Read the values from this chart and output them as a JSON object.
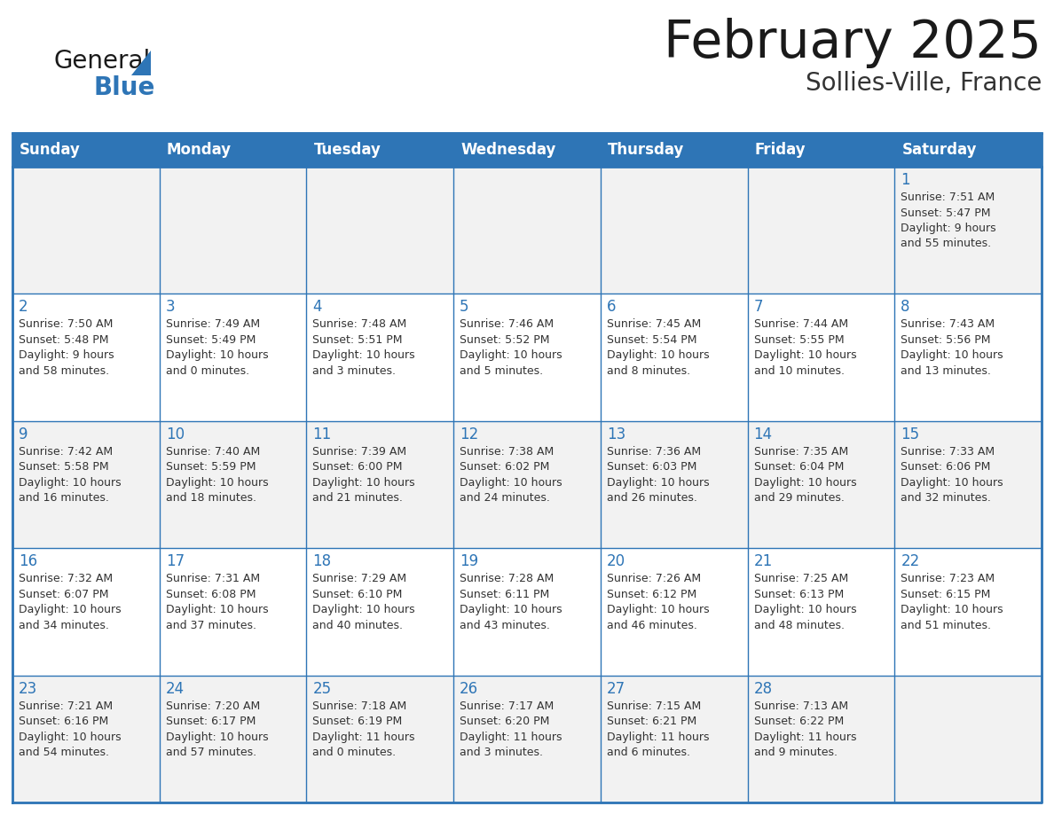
{
  "title": "February 2025",
  "subtitle": "Sollies-Ville, France",
  "header_bg": "#2E75B6",
  "header_text_color": "#FFFFFF",
  "cell_bg": "#F2F2F2",
  "cell_bg2": "#FFFFFF",
  "border_color": "#2E75B6",
  "title_color": "#1A1A1A",
  "subtitle_color": "#333333",
  "day_number_color": "#2E75B6",
  "cell_text_color": "#333333",
  "logo_general_color": "#1A1A1A",
  "logo_blue_color": "#2E75B6",
  "logo_triangle_color": "#2E75B6",
  "days_of_week": [
    "Sunday",
    "Monday",
    "Tuesday",
    "Wednesday",
    "Thursday",
    "Friday",
    "Saturday"
  ],
  "weeks": [
    [
      {
        "day": "",
        "info": ""
      },
      {
        "day": "",
        "info": ""
      },
      {
        "day": "",
        "info": ""
      },
      {
        "day": "",
        "info": ""
      },
      {
        "day": "",
        "info": ""
      },
      {
        "day": "",
        "info": ""
      },
      {
        "day": "1",
        "info": "Sunrise: 7:51 AM\nSunset: 5:47 PM\nDaylight: 9 hours\nand 55 minutes."
      }
    ],
    [
      {
        "day": "2",
        "info": "Sunrise: 7:50 AM\nSunset: 5:48 PM\nDaylight: 9 hours\nand 58 minutes."
      },
      {
        "day": "3",
        "info": "Sunrise: 7:49 AM\nSunset: 5:49 PM\nDaylight: 10 hours\nand 0 minutes."
      },
      {
        "day": "4",
        "info": "Sunrise: 7:48 AM\nSunset: 5:51 PM\nDaylight: 10 hours\nand 3 minutes."
      },
      {
        "day": "5",
        "info": "Sunrise: 7:46 AM\nSunset: 5:52 PM\nDaylight: 10 hours\nand 5 minutes."
      },
      {
        "day": "6",
        "info": "Sunrise: 7:45 AM\nSunset: 5:54 PM\nDaylight: 10 hours\nand 8 minutes."
      },
      {
        "day": "7",
        "info": "Sunrise: 7:44 AM\nSunset: 5:55 PM\nDaylight: 10 hours\nand 10 minutes."
      },
      {
        "day": "8",
        "info": "Sunrise: 7:43 AM\nSunset: 5:56 PM\nDaylight: 10 hours\nand 13 minutes."
      }
    ],
    [
      {
        "day": "9",
        "info": "Sunrise: 7:42 AM\nSunset: 5:58 PM\nDaylight: 10 hours\nand 16 minutes."
      },
      {
        "day": "10",
        "info": "Sunrise: 7:40 AM\nSunset: 5:59 PM\nDaylight: 10 hours\nand 18 minutes."
      },
      {
        "day": "11",
        "info": "Sunrise: 7:39 AM\nSunset: 6:00 PM\nDaylight: 10 hours\nand 21 minutes."
      },
      {
        "day": "12",
        "info": "Sunrise: 7:38 AM\nSunset: 6:02 PM\nDaylight: 10 hours\nand 24 minutes."
      },
      {
        "day": "13",
        "info": "Sunrise: 7:36 AM\nSunset: 6:03 PM\nDaylight: 10 hours\nand 26 minutes."
      },
      {
        "day": "14",
        "info": "Sunrise: 7:35 AM\nSunset: 6:04 PM\nDaylight: 10 hours\nand 29 minutes."
      },
      {
        "day": "15",
        "info": "Sunrise: 7:33 AM\nSunset: 6:06 PM\nDaylight: 10 hours\nand 32 minutes."
      }
    ],
    [
      {
        "day": "16",
        "info": "Sunrise: 7:32 AM\nSunset: 6:07 PM\nDaylight: 10 hours\nand 34 minutes."
      },
      {
        "day": "17",
        "info": "Sunrise: 7:31 AM\nSunset: 6:08 PM\nDaylight: 10 hours\nand 37 minutes."
      },
      {
        "day": "18",
        "info": "Sunrise: 7:29 AM\nSunset: 6:10 PM\nDaylight: 10 hours\nand 40 minutes."
      },
      {
        "day": "19",
        "info": "Sunrise: 7:28 AM\nSunset: 6:11 PM\nDaylight: 10 hours\nand 43 minutes."
      },
      {
        "day": "20",
        "info": "Sunrise: 7:26 AM\nSunset: 6:12 PM\nDaylight: 10 hours\nand 46 minutes."
      },
      {
        "day": "21",
        "info": "Sunrise: 7:25 AM\nSunset: 6:13 PM\nDaylight: 10 hours\nand 48 minutes."
      },
      {
        "day": "22",
        "info": "Sunrise: 7:23 AM\nSunset: 6:15 PM\nDaylight: 10 hours\nand 51 minutes."
      }
    ],
    [
      {
        "day": "23",
        "info": "Sunrise: 7:21 AM\nSunset: 6:16 PM\nDaylight: 10 hours\nand 54 minutes."
      },
      {
        "day": "24",
        "info": "Sunrise: 7:20 AM\nSunset: 6:17 PM\nDaylight: 10 hours\nand 57 minutes."
      },
      {
        "day": "25",
        "info": "Sunrise: 7:18 AM\nSunset: 6:19 PM\nDaylight: 11 hours\nand 0 minutes."
      },
      {
        "day": "26",
        "info": "Sunrise: 7:17 AM\nSunset: 6:20 PM\nDaylight: 11 hours\nand 3 minutes."
      },
      {
        "day": "27",
        "info": "Sunrise: 7:15 AM\nSunset: 6:21 PM\nDaylight: 11 hours\nand 6 minutes."
      },
      {
        "day": "28",
        "info": "Sunrise: 7:13 AM\nSunset: 6:22 PM\nDaylight: 11 hours\nand 9 minutes."
      },
      {
        "day": "",
        "info": ""
      }
    ]
  ]
}
